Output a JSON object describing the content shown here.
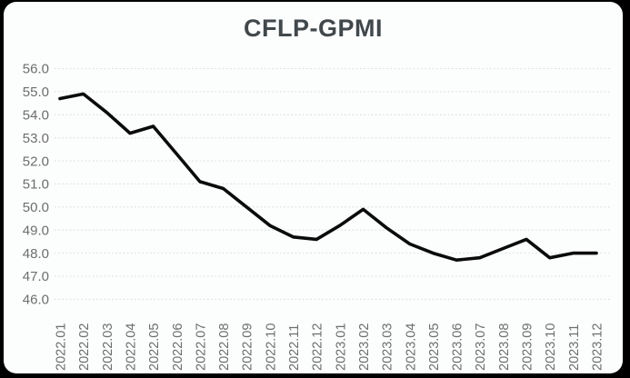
{
  "chart_data": {
    "type": "line",
    "title": "CFLP-GPMI",
    "categories": [
      "2022.01",
      "2022.02",
      "2022.03",
      "2022.04",
      "2022.05",
      "2022.06",
      "2022.07",
      "2022.08",
      "2022.09",
      "2022.10",
      "2022.11",
      "2022.12",
      "2023.01",
      "2023.02",
      "2023.03",
      "2023.04",
      "2023.05",
      "2023.06",
      "2023.07",
      "2023.08",
      "2023.09",
      "2023.10",
      "2023.11",
      "2023.12"
    ],
    "series": [
      {
        "name": "CFLP-GPMI",
        "values": [
          54.7,
          54.9,
          54.1,
          53.2,
          53.5,
          52.3,
          51.1,
          50.8,
          50.0,
          49.2,
          48.7,
          48.6,
          49.2,
          49.9,
          49.1,
          48.4,
          48.0,
          47.7,
          47.8,
          48.2,
          48.6,
          47.8,
          48.0,
          48.0
        ]
      }
    ],
    "xlabel": "",
    "ylabel": "",
    "ylim": [
      46.0,
      56.0
    ],
    "y_ticks": [
      "56.0",
      "55.0",
      "54.0",
      "53.0",
      "52.0",
      "51.0",
      "50.0",
      "49.0",
      "48.0",
      "47.0",
      "46.0"
    ],
    "grid": "horizontal-dotted",
    "legend_position": "none",
    "colors": {
      "line": "#0b0b0b",
      "grid": "#d5dfe0",
      "tick_label": "#6d6d6d",
      "title": "#41484b",
      "card_background": "#fcfdfd",
      "page_background": "#000000"
    }
  }
}
